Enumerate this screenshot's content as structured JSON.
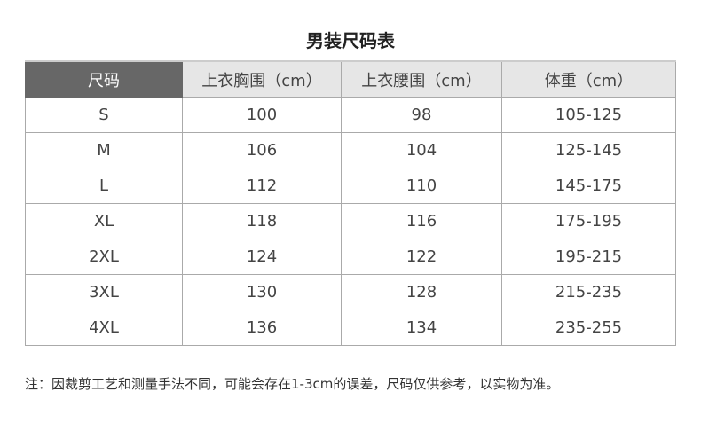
{
  "title": "男装尺码表",
  "table": {
    "headers": [
      "尺码",
      "上衣胸围（cm）",
      "上衣腰围（cm）",
      "体重（cm）"
    ],
    "rows": [
      [
        "S",
        "100",
        "98",
        "105-125"
      ],
      [
        "M",
        "106",
        "104",
        "125-145"
      ],
      [
        "L",
        "112",
        "110",
        "145-175"
      ],
      [
        "XL",
        "118",
        "116",
        "175-195"
      ],
      [
        "2XL",
        "124",
        "122",
        "195-215"
      ],
      [
        "3XL",
        "130",
        "128",
        "215-235"
      ],
      [
        "4XL",
        "136",
        "134",
        "235-255"
      ]
    ]
  },
  "note": "注：因裁剪工艺和测量手法不同，可能会存在1-3cm的误差，尺码仅供参考，以实物为准。",
  "colors": {
    "header_dark": "#676767",
    "header_light": "#e6e6e6"
  }
}
